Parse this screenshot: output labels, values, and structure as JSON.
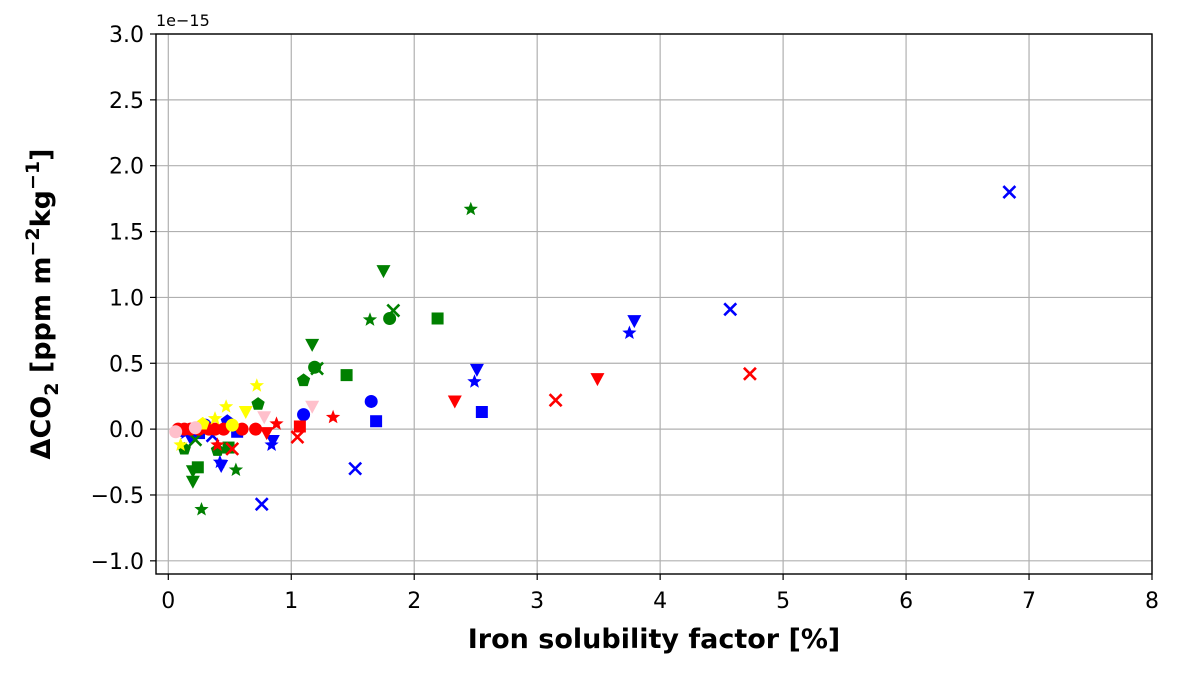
{
  "chart_data": {
    "type": "scatter",
    "xlabel": "Iron solubility factor [%]",
    "ylabel_parts": {
      "pre": "ΔCO",
      "sub": "2",
      "mid": " [ppm m",
      "sup1": "−2",
      "kg": "kg",
      "sup2": "−1",
      "post": "]"
    },
    "offset_label": "1e−15",
    "xlim": [
      -0.1,
      8.0
    ],
    "ylim": [
      -1.1,
      3.0
    ],
    "x_ticks": [
      0,
      1,
      2,
      3,
      4,
      5,
      6,
      7,
      8
    ],
    "x_tick_labels": [
      "0",
      "1",
      "2",
      "3",
      "4",
      "5",
      "6",
      "7",
      "8"
    ],
    "y_ticks": [
      -1.0,
      -0.5,
      0.0,
      0.5,
      1.0,
      1.5,
      2.0,
      2.5,
      3.0
    ],
    "y_tick_labels": [
      "−1.0",
      "−0.5",
      "0.0",
      "0.5",
      "1.0",
      "1.5",
      "2.0",
      "2.5",
      "3.0"
    ],
    "grid": true,
    "colors": {
      "blue": "#0000ff",
      "green": "#008000",
      "red": "#ff0000",
      "yellow": "#ffff00",
      "pink": "#ffc0cb"
    },
    "series": [
      {
        "color": "blue",
        "points": [
          {
            "x": 6.84,
            "y": 1.8,
            "m": "x"
          },
          {
            "x": 4.57,
            "y": 0.91,
            "m": "x"
          },
          {
            "x": 3.79,
            "y": 0.82,
            "m": "v"
          },
          {
            "x": 3.75,
            "y": 0.73,
            "m": "*"
          },
          {
            "x": 2.51,
            "y": 0.45,
            "m": "v"
          },
          {
            "x": 2.49,
            "y": 0.36,
            "m": "*"
          },
          {
            "x": 2.55,
            "y": 0.13,
            "m": "s"
          },
          {
            "x": 1.65,
            "y": 0.21,
            "m": "o"
          },
          {
            "x": 1.69,
            "y": 0.06,
            "m": "s"
          },
          {
            "x": 1.52,
            "y": -0.3,
            "m": "x"
          },
          {
            "x": 1.1,
            "y": 0.11,
            "m": "o"
          },
          {
            "x": 0.76,
            "y": -0.57,
            "m": "x"
          },
          {
            "x": 0.84,
            "y": -0.12,
            "m": "*"
          },
          {
            "x": 0.85,
            "y": -0.09,
            "m": "v"
          },
          {
            "x": 0.56,
            "y": -0.02,
            "m": "s"
          },
          {
            "x": 0.48,
            "y": 0.06,
            "m": "p"
          },
          {
            "x": 0.42,
            "y": -0.25,
            "m": "*"
          },
          {
            "x": 0.43,
            "y": -0.28,
            "m": "v"
          },
          {
            "x": 0.3,
            "y": 0.03,
            "m": "o"
          },
          {
            "x": 0.25,
            "y": -0.03,
            "m": "s"
          },
          {
            "x": 0.18,
            "y": -0.07,
            "m": "v"
          },
          {
            "x": 0.14,
            "y": -0.03,
            "m": "*"
          },
          {
            "x": 0.11,
            "y": -0.01,
            "m": "o"
          },
          {
            "x": 0.36,
            "y": -0.05,
            "m": "x"
          }
        ]
      },
      {
        "color": "green",
        "points": [
          {
            "x": 2.46,
            "y": 1.67,
            "m": "*"
          },
          {
            "x": 1.75,
            "y": 1.2,
            "m": "v"
          },
          {
            "x": 1.83,
            "y": 0.9,
            "m": "x"
          },
          {
            "x": 1.64,
            "y": 0.83,
            "m": "*"
          },
          {
            "x": 1.8,
            "y": 0.84,
            "m": "o"
          },
          {
            "x": 2.19,
            "y": 0.84,
            "m": "s"
          },
          {
            "x": 1.17,
            "y": 0.64,
            "m": "v"
          },
          {
            "x": 1.21,
            "y": 0.46,
            "m": "x"
          },
          {
            "x": 1.19,
            "y": 0.47,
            "m": "o"
          },
          {
            "x": 1.45,
            "y": 0.41,
            "m": "s"
          },
          {
            "x": 1.1,
            "y": 0.37,
            "m": "p"
          },
          {
            "x": 0.73,
            "y": 0.19,
            "m": "p"
          },
          {
            "x": 0.55,
            "y": -0.31,
            "m": "*"
          },
          {
            "x": 0.49,
            "y": -0.14,
            "m": "s"
          },
          {
            "x": 0.4,
            "y": -0.16,
            "m": "p"
          },
          {
            "x": 0.27,
            "y": -0.61,
            "m": "*"
          },
          {
            "x": 0.24,
            "y": -0.29,
            "m": "s"
          },
          {
            "x": 0.2,
            "y": -0.4,
            "m": "v"
          },
          {
            "x": 0.2,
            "y": -0.32,
            "m": "v"
          },
          {
            "x": 0.13,
            "y": -0.15,
            "m": "p"
          },
          {
            "x": 0.22,
            "y": -0.08,
            "m": "x"
          }
        ]
      },
      {
        "color": "red",
        "points": [
          {
            "x": 4.73,
            "y": 0.42,
            "m": "x"
          },
          {
            "x": 3.49,
            "y": 0.38,
            "m": "v"
          },
          {
            "x": 3.15,
            "y": 0.22,
            "m": "x"
          },
          {
            "x": 2.33,
            "y": 0.21,
            "m": "v"
          },
          {
            "x": 1.34,
            "y": 0.09,
            "m": "*"
          },
          {
            "x": 1.07,
            "y": 0.02,
            "m": "s"
          },
          {
            "x": 1.05,
            "y": -0.06,
            "m": "x"
          },
          {
            "x": 0.88,
            "y": 0.04,
            "m": "*"
          },
          {
            "x": 0.8,
            "y": -0.03,
            "m": "v"
          },
          {
            "x": 0.71,
            "y": 0.0,
            "m": "o"
          },
          {
            "x": 0.52,
            "y": -0.15,
            "m": "x"
          },
          {
            "x": 0.4,
            "y": -0.12,
            "m": "*"
          },
          {
            "x": 0.45,
            "y": 0.0,
            "m": "o"
          },
          {
            "x": 0.33,
            "y": 0.0,
            "m": "o"
          },
          {
            "x": 0.25,
            "y": 0.0,
            "m": "o"
          },
          {
            "x": 0.18,
            "y": 0.0,
            "m": "o"
          },
          {
            "x": 0.13,
            "y": 0.0,
            "m": "o"
          },
          {
            "x": 0.08,
            "y": 0.0,
            "m": "o"
          },
          {
            "x": 0.38,
            "y": 0.0,
            "m": "o"
          },
          {
            "x": 0.6,
            "y": 0.0,
            "m": "o"
          }
        ]
      },
      {
        "color": "yellow",
        "points": [
          {
            "x": 0.72,
            "y": 0.33,
            "m": "*"
          },
          {
            "x": 0.47,
            "y": 0.17,
            "m": "*"
          },
          {
            "x": 0.63,
            "y": 0.13,
            "m": "v"
          },
          {
            "x": 0.38,
            "y": 0.08,
            "m": "*"
          },
          {
            "x": 0.28,
            "y": 0.04,
            "m": "p"
          },
          {
            "x": 0.1,
            "y": -0.12,
            "m": "*"
          },
          {
            "x": 0.52,
            "y": 0.03,
            "m": "o"
          }
        ]
      },
      {
        "color": "pink",
        "points": [
          {
            "x": 1.17,
            "y": 0.17,
            "m": "v"
          },
          {
            "x": 0.78,
            "y": 0.09,
            "m": "v"
          },
          {
            "x": 0.06,
            "y": -0.02,
            "m": "o"
          },
          {
            "x": 0.22,
            "y": 0.01,
            "m": "o"
          }
        ]
      }
    ]
  }
}
